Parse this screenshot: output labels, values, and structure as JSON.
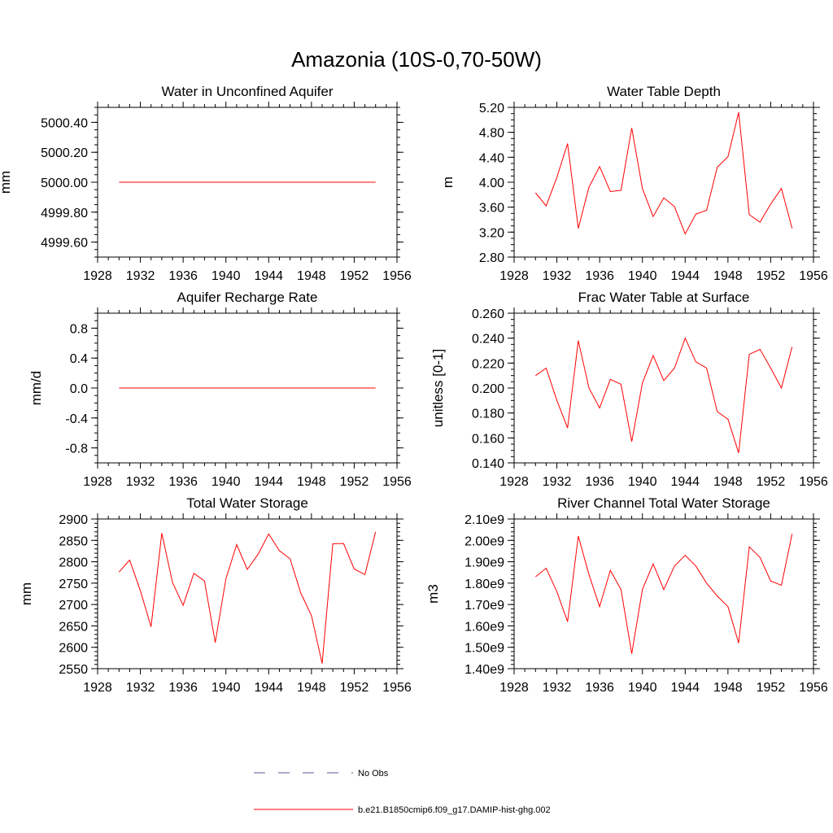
{
  "figure": {
    "title": "Amazonia (10S-0,70-50W)",
    "line_color": "#ff0000",
    "obs_color": "#5a5aa0"
  },
  "legend": {
    "entries": [
      {
        "label": "No Obs",
        "style": "dashed",
        "color": "#5a5aa0"
      },
      {
        "label": "b.e21.B1850cmip6.f09_g17.DAMIP-hist-ghg.002",
        "style": "solid",
        "color": "#ff0000"
      }
    ]
  },
  "chart_data": [
    {
      "type": "line",
      "title": "Water in Unconfined Aquifer",
      "ylabel": "mm",
      "xlim": [
        1928,
        1956
      ],
      "xticks": [
        "1928",
        "1932",
        "1936",
        "1940",
        "1944",
        "1948",
        "1952",
        "1956"
      ],
      "ylim": [
        4999.5,
        5000.5
      ],
      "yticks": [
        {
          "v": 4999.6,
          "label": "4999.60"
        },
        {
          "v": 4999.8,
          "label": "4999.80"
        },
        {
          "v": 5000.0,
          "label": "5000.00"
        },
        {
          "v": 5000.2,
          "label": "5000.20"
        },
        {
          "v": 5000.4,
          "label": "5000.40"
        }
      ],
      "yminor": 0.05,
      "x": [
        1930,
        1931,
        1932,
        1933,
        1934,
        1935,
        1936,
        1937,
        1938,
        1939,
        1940,
        1941,
        1942,
        1943,
        1944,
        1945,
        1946,
        1947,
        1948,
        1949,
        1950,
        1951,
        1952,
        1953,
        1954
      ],
      "series": [
        {
          "values": [
            5000,
            5000,
            5000,
            5000,
            5000,
            5000,
            5000,
            5000,
            5000,
            5000,
            5000,
            5000,
            5000,
            5000,
            5000,
            5000,
            5000,
            5000,
            5000,
            5000,
            5000,
            5000,
            5000,
            5000,
            5000
          ]
        }
      ]
    },
    {
      "type": "line",
      "title": "Water Table Depth",
      "ylabel": "m",
      "xlim": [
        1928,
        1956
      ],
      "xticks": [
        "1928",
        "1932",
        "1936",
        "1940",
        "1944",
        "1948",
        "1952",
        "1956"
      ],
      "ylim": [
        2.8,
        5.2
      ],
      "yticks": [
        {
          "v": 2.8,
          "label": "2.80"
        },
        {
          "v": 3.2,
          "label": "3.20"
        },
        {
          "v": 3.6,
          "label": "3.60"
        },
        {
          "v": 4.0,
          "label": "4.00"
        },
        {
          "v": 4.4,
          "label": "4.40"
        },
        {
          "v": 4.8,
          "label": "4.80"
        },
        {
          "v": 5.2,
          "label": "5.20"
        }
      ],
      "yminor": 0.1,
      "x": [
        1930,
        1931,
        1932,
        1933,
        1934,
        1935,
        1936,
        1937,
        1938,
        1939,
        1940,
        1941,
        1942,
        1943,
        1944,
        1945,
        1946,
        1947,
        1948,
        1949,
        1950,
        1951,
        1952,
        1953,
        1954
      ],
      "series": [
        {
          "values": [
            3.83,
            3.62,
            4.08,
            4.62,
            3.26,
            3.92,
            4.25,
            3.85,
            3.87,
            4.87,
            3.9,
            3.45,
            3.75,
            3.61,
            3.17,
            3.49,
            3.55,
            4.24,
            4.41,
            5.12,
            3.48,
            3.36,
            3.65,
            3.9,
            3.26
          ]
        }
      ]
    },
    {
      "type": "line",
      "title": "Aquifer Recharge Rate",
      "ylabel": "mm/d",
      "xlim": [
        1928,
        1956
      ],
      "xticks": [
        "1928",
        "1932",
        "1936",
        "1940",
        "1944",
        "1948",
        "1952",
        "1956"
      ],
      "ylim": [
        -1.0,
        1.0
      ],
      "yticks": [
        {
          "v": -0.8,
          "label": "-0.8"
        },
        {
          "v": -0.4,
          "label": "-0.4"
        },
        {
          "v": 0.0,
          "label": "0.0"
        },
        {
          "v": 0.4,
          "label": "0.4"
        },
        {
          "v": 0.8,
          "label": "0.8"
        }
      ],
      "yminor": 0.1,
      "x": [
        1930,
        1931,
        1932,
        1933,
        1934,
        1935,
        1936,
        1937,
        1938,
        1939,
        1940,
        1941,
        1942,
        1943,
        1944,
        1945,
        1946,
        1947,
        1948,
        1949,
        1950,
        1951,
        1952,
        1953,
        1954
      ],
      "series": [
        {
          "values": [
            0,
            0,
            0,
            0,
            0,
            0,
            0,
            0,
            0,
            0,
            0,
            0,
            0,
            0,
            0,
            0,
            0,
            0,
            0,
            0,
            0,
            0,
            0,
            0,
            0
          ]
        }
      ]
    },
    {
      "type": "line",
      "title": "Frac Water Table at Surface",
      "ylabel": "unitless [0-1]",
      "xlim": [
        1928,
        1956
      ],
      "xticks": [
        "1928",
        "1932",
        "1936",
        "1940",
        "1944",
        "1948",
        "1952",
        "1956"
      ],
      "ylim": [
        0.14,
        0.26
      ],
      "yticks": [
        {
          "v": 0.14,
          "label": "0.140"
        },
        {
          "v": 0.16,
          "label": "0.160"
        },
        {
          "v": 0.18,
          "label": "0.180"
        },
        {
          "v": 0.2,
          "label": "0.200"
        },
        {
          "v": 0.22,
          "label": "0.220"
        },
        {
          "v": 0.24,
          "label": "0.240"
        },
        {
          "v": 0.26,
          "label": "0.260"
        }
      ],
      "yminor": 0.005,
      "x": [
        1930,
        1931,
        1932,
        1933,
        1934,
        1935,
        1936,
        1937,
        1938,
        1939,
        1940,
        1941,
        1942,
        1943,
        1944,
        1945,
        1946,
        1947,
        1948,
        1949,
        1950,
        1951,
        1952,
        1953,
        1954
      ],
      "series": [
        {
          "values": [
            0.21,
            0.216,
            0.19,
            0.168,
            0.238,
            0.2,
            0.184,
            0.207,
            0.203,
            0.157,
            0.204,
            0.226,
            0.206,
            0.216,
            0.24,
            0.221,
            0.216,
            0.181,
            0.175,
            0.148,
            0.227,
            0.231,
            0.216,
            0.2,
            0.233
          ]
        }
      ]
    },
    {
      "type": "line",
      "title": "Total Water Storage",
      "ylabel": "mm",
      "xlim": [
        1928,
        1956
      ],
      "xticks": [
        "1928",
        "1932",
        "1936",
        "1940",
        "1944",
        "1948",
        "1952",
        "1956"
      ],
      "ylim": [
        2550,
        2900
      ],
      "yticks": [
        {
          "v": 2550,
          "label": "2550"
        },
        {
          "v": 2600,
          "label": "2600"
        },
        {
          "v": 2650,
          "label": "2650"
        },
        {
          "v": 2700,
          "label": "2700"
        },
        {
          "v": 2750,
          "label": "2750"
        },
        {
          "v": 2800,
          "label": "2800"
        },
        {
          "v": 2850,
          "label": "2850"
        },
        {
          "v": 2900,
          "label": "2900"
        }
      ],
      "yminor": 10,
      "x": [
        1930,
        1931,
        1932,
        1933,
        1934,
        1935,
        1936,
        1937,
        1938,
        1939,
        1940,
        1941,
        1942,
        1943,
        1944,
        1945,
        1946,
        1947,
        1948,
        1949,
        1950,
        1951,
        1952,
        1953,
        1954
      ],
      "series": [
        {
          "values": [
            2776,
            2804,
            2732,
            2648,
            2867,
            2752,
            2698,
            2773,
            2755,
            2611,
            2760,
            2840,
            2782,
            2817,
            2865,
            2826,
            2807,
            2727,
            2674,
            2562,
            2842,
            2843,
            2783,
            2770,
            2870
          ]
        }
      ]
    },
    {
      "type": "line",
      "title": "River Channel Total Water Storage",
      "ylabel": "m3",
      "xlim": [
        1928,
        1956
      ],
      "xticks": [
        "1928",
        "1932",
        "1936",
        "1940",
        "1944",
        "1948",
        "1952",
        "1956"
      ],
      "ylim": [
        1.4,
        2.1
      ],
      "yticks": [
        {
          "v": 1.4,
          "label": "1.40e9"
        },
        {
          "v": 1.5,
          "label": "1.50e9"
        },
        {
          "v": 1.6,
          "label": "1.60e9"
        },
        {
          "v": 1.7,
          "label": "1.70e9"
        },
        {
          "v": 1.8,
          "label": "1.80e9"
        },
        {
          "v": 1.9,
          "label": "1.90e9"
        },
        {
          "v": 2.0,
          "label": "2.00e9"
        },
        {
          "v": 2.1,
          "label": "2.10e9"
        }
      ],
      "yminor": 0.02,
      "x": [
        1930,
        1931,
        1932,
        1933,
        1934,
        1935,
        1936,
        1937,
        1938,
        1939,
        1940,
        1941,
        1942,
        1943,
        1944,
        1945,
        1946,
        1947,
        1948,
        1949,
        1950,
        1951,
        1952,
        1953,
        1954
      ],
      "series": [
        {
          "values": [
            1.83,
            1.87,
            1.76,
            1.62,
            2.02,
            1.84,
            1.69,
            1.86,
            1.77,
            1.47,
            1.77,
            1.89,
            1.77,
            1.88,
            1.93,
            1.88,
            1.8,
            1.74,
            1.69,
            1.52,
            1.97,
            1.92,
            1.81,
            1.79,
            2.03
          ]
        }
      ]
    }
  ]
}
